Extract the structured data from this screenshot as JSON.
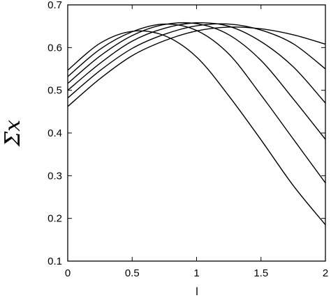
{
  "chart_data": {
    "type": "line",
    "title": "",
    "xlabel": "l",
    "ylabel": "Σx",
    "xlim": [
      0,
      2
    ],
    "ylim": [
      0.1,
      0.7
    ],
    "xticks": [
      0,
      0.5,
      1,
      1.5,
      2
    ],
    "xtick_labels": [
      "0",
      "0.5",
      "1",
      "1.5",
      "2"
    ],
    "yticks": [
      0.1,
      0.2,
      0.3,
      0.4,
      0.5,
      0.6,
      0.7
    ],
    "ytick_labels": [
      "0.1",
      "0.2",
      "0.3",
      "0.4",
      "0.5",
      "0.6",
      "0.7"
    ],
    "grid": false,
    "legend": "none",
    "line_color": "#000000",
    "series": [
      {
        "x": [
          0,
          0.25,
          0.5,
          0.75,
          1.0,
          1.25,
          1.5,
          1.75,
          2.0
        ],
        "values": [
          0.547,
          0.61,
          0.638,
          0.628,
          0.578,
          0.487,
          0.384,
          0.277,
          0.185
        ]
      },
      {
        "x": [
          0,
          0.25,
          0.5,
          0.75,
          1.0,
          1.25,
          1.5,
          1.75,
          2.0
        ],
        "values": [
          0.532,
          0.596,
          0.637,
          0.655,
          0.64,
          0.585,
          0.489,
          0.386,
          0.283
        ]
      },
      {
        "x": [
          0,
          0.25,
          0.5,
          0.75,
          1.0,
          1.25,
          1.5,
          1.75,
          2.0
        ],
        "values": [
          0.516,
          0.58,
          0.628,
          0.654,
          0.656,
          0.63,
          0.57,
          0.48,
          0.385
        ]
      },
      {
        "x": [
          0,
          0.25,
          0.5,
          0.75,
          1.0,
          1.25,
          1.5,
          1.75,
          2.0
        ],
        "values": [
          0.5,
          0.563,
          0.615,
          0.645,
          0.658,
          0.65,
          0.614,
          0.555,
          0.47
        ]
      },
      {
        "x": [
          0,
          0.25,
          0.5,
          0.75,
          1.0,
          1.25,
          1.5,
          1.75,
          2.0
        ],
        "values": [
          0.482,
          0.546,
          0.598,
          0.631,
          0.651,
          0.655,
          0.641,
          0.609,
          0.55
        ]
      },
      {
        "x": [
          0,
          0.25,
          0.5,
          0.75,
          1.0,
          1.25,
          1.5,
          1.75,
          2.0
        ],
        "values": [
          0.462,
          0.527,
          0.581,
          0.616,
          0.639,
          0.648,
          0.644,
          0.63,
          0.608
        ]
      }
    ]
  }
}
